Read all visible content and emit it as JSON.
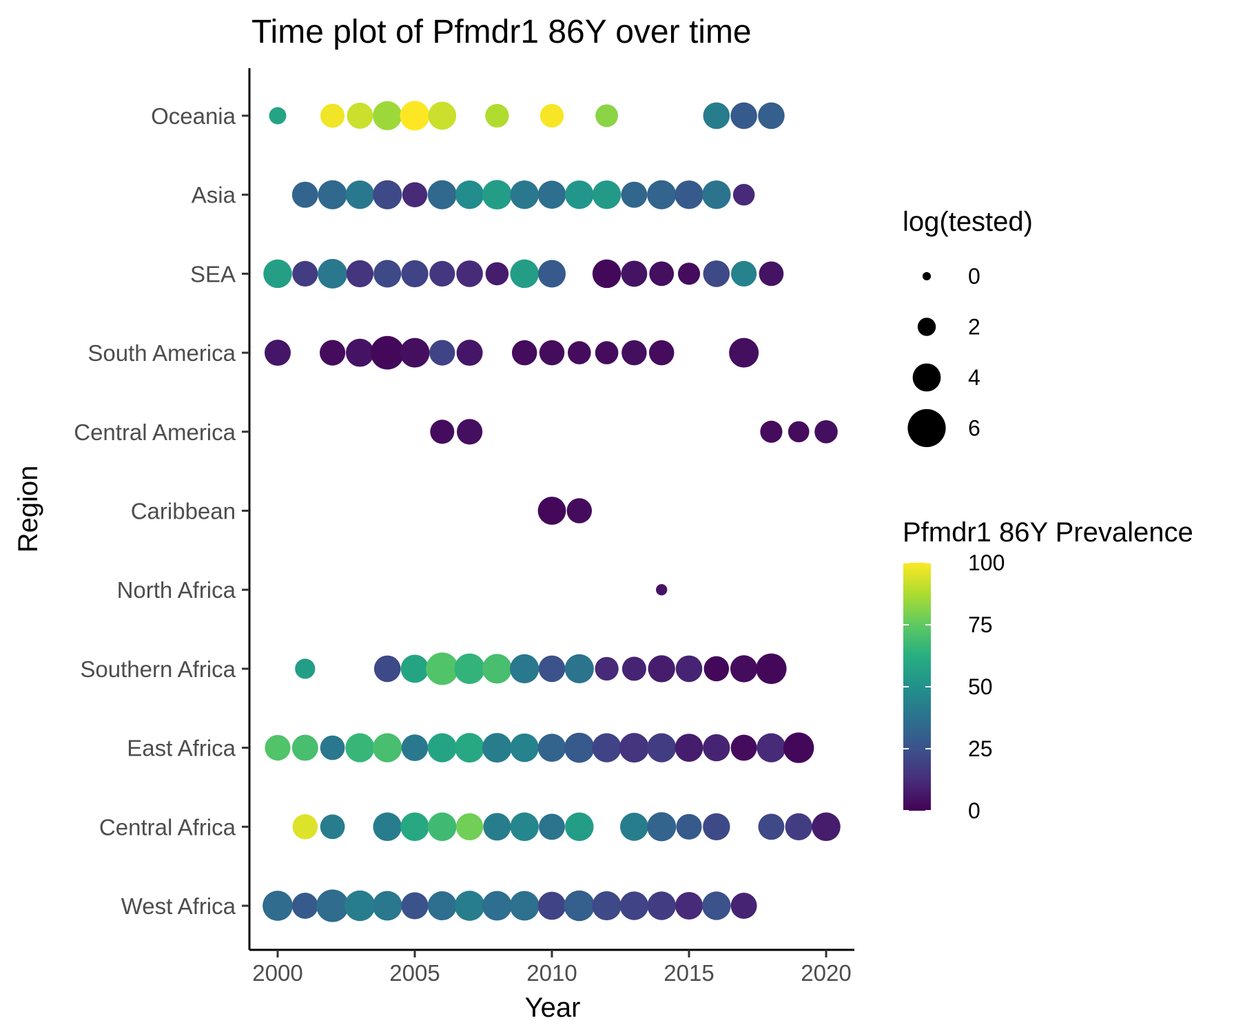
{
  "chart_data": {
    "type": "scatter",
    "title": "Time plot of Pfmdr1 86Y over time",
    "xlabel": "Year",
    "ylabel": "Region",
    "xlim": [
      1999,
      2021
    ],
    "x_ticks": [
      2000,
      2005,
      2010,
      2015,
      2020
    ],
    "categories": [
      "Oceania",
      "Asia",
      "SEA",
      "South America",
      "Central America",
      "Caribbean",
      "North Africa",
      "Southern Africa",
      "East Africa",
      "Central Africa",
      "West Africa"
    ],
    "size_legend": {
      "title": "log(tested)",
      "entries": [
        {
          "label": "0",
          "value": 0
        },
        {
          "label": "2",
          "value": 2
        },
        {
          "label": "4",
          "value": 4
        },
        {
          "label": "6",
          "value": 6
        }
      ]
    },
    "color_legend": {
      "title": "Pfmdr1 86Y Prevalence",
      "ticks": [
        {
          "label": "100",
          "value": 100
        },
        {
          "label": "75",
          "value": 75
        },
        {
          "label": "50",
          "value": 50
        },
        {
          "label": "25",
          "value": 25
        },
        {
          "label": "0",
          "value": 0
        }
      ],
      "range": [
        0,
        100
      ],
      "colormap": "viridis"
    },
    "grid": false,
    "legend_position": "right",
    "series": [
      {
        "region": "Oceania",
        "points": [
          [
            2000,
            1.8,
            58
          ],
          [
            2002,
            3.2,
            98
          ],
          [
            2003,
            3.6,
            92
          ],
          [
            2004,
            4.2,
            85
          ],
          [
            2005,
            4.3,
            100
          ],
          [
            2006,
            4.0,
            92
          ],
          [
            2008,
            3.1,
            88
          ],
          [
            2010,
            3.1,
            99
          ],
          [
            2012,
            2.9,
            82
          ],
          [
            2016,
            3.7,
            42
          ],
          [
            2017,
            3.7,
            28
          ],
          [
            2018,
            3.7,
            30
          ]
        ]
      },
      {
        "region": "Asia",
        "points": [
          [
            2001,
            3.6,
            32
          ],
          [
            2002,
            4.2,
            34
          ],
          [
            2003,
            4.1,
            40
          ],
          [
            2004,
            4.2,
            22
          ],
          [
            2005,
            3.4,
            12
          ],
          [
            2006,
            4.2,
            34
          ],
          [
            2007,
            4.1,
            48
          ],
          [
            2008,
            4.3,
            55
          ],
          [
            2009,
            4.1,
            40
          ],
          [
            2010,
            4.0,
            36
          ],
          [
            2011,
            4.1,
            52
          ],
          [
            2012,
            4.1,
            54
          ],
          [
            2013,
            3.6,
            33
          ],
          [
            2014,
            4.2,
            32
          ],
          [
            2015,
            4.1,
            28
          ],
          [
            2016,
            4.1,
            38
          ],
          [
            2017,
            2.7,
            12
          ]
        ]
      },
      {
        "region": "SEA",
        "points": [
          [
            2000,
            4.1,
            56
          ],
          [
            2001,
            3.5,
            18
          ],
          [
            2002,
            4.3,
            40
          ],
          [
            2003,
            3.8,
            15
          ],
          [
            2004,
            3.9,
            22
          ],
          [
            2005,
            3.8,
            20
          ],
          [
            2006,
            3.5,
            16
          ],
          [
            2007,
            3.7,
            12
          ],
          [
            2008,
            3.0,
            8
          ],
          [
            2009,
            4.1,
            55
          ],
          [
            2010,
            3.9,
            28
          ],
          [
            2012,
            4.1,
            2
          ],
          [
            2013,
            3.6,
            5
          ],
          [
            2014,
            3.3,
            4
          ],
          [
            2015,
            2.8,
            3
          ],
          [
            2016,
            3.7,
            22
          ],
          [
            2017,
            3.5,
            44
          ],
          [
            2018,
            3.3,
            5
          ]
        ]
      },
      {
        "region": "South America",
        "points": [
          [
            2000,
            3.6,
            6
          ],
          [
            2002,
            3.5,
            3
          ],
          [
            2003,
            4.0,
            5
          ],
          [
            2004,
            5.1,
            2
          ],
          [
            2005,
            4.3,
            4
          ],
          [
            2006,
            3.5,
            20
          ],
          [
            2007,
            3.6,
            6
          ],
          [
            2009,
            3.4,
            3
          ],
          [
            2010,
            3.4,
            3
          ],
          [
            2011,
            3.0,
            3
          ],
          [
            2012,
            3.0,
            3
          ],
          [
            2013,
            3.4,
            4
          ],
          [
            2014,
            3.4,
            3
          ],
          [
            2017,
            4.3,
            4
          ]
        ]
      },
      {
        "region": "Central America",
        "points": [
          [
            2006,
            3.2,
            3
          ],
          [
            2007,
            3.5,
            4
          ],
          [
            2018,
            2.8,
            3
          ],
          [
            2019,
            2.6,
            3
          ],
          [
            2020,
            3.0,
            4
          ]
        ]
      },
      {
        "region": "Caribbean",
        "points": [
          [
            2010,
            4.0,
            2
          ],
          [
            2011,
            3.4,
            3
          ]
        ]
      },
      {
        "region": "North Africa",
        "points": [
          [
            2014,
            0.6,
            5
          ]
        ]
      },
      {
        "region": "Southern Africa",
        "points": [
          [
            2001,
            2.4,
            55
          ],
          [
            2004,
            3.7,
            22
          ],
          [
            2005,
            4.0,
            58
          ],
          [
            2006,
            4.9,
            72
          ],
          [
            2007,
            4.5,
            65
          ],
          [
            2008,
            4.3,
            70
          ],
          [
            2009,
            4.2,
            40
          ],
          [
            2010,
            3.7,
            25
          ],
          [
            2011,
            4.2,
            38
          ],
          [
            2012,
            3.1,
            12
          ],
          [
            2013,
            3.2,
            10
          ],
          [
            2014,
            3.8,
            8
          ],
          [
            2015,
            3.7,
            10
          ],
          [
            2016,
            3.4,
            2
          ],
          [
            2017,
            3.8,
            3
          ],
          [
            2018,
            4.5,
            2
          ]
        ]
      },
      {
        "region": "East Africa",
        "points": [
          [
            2000,
            3.5,
            72
          ],
          [
            2001,
            3.6,
            70
          ],
          [
            2002,
            3.3,
            40
          ],
          [
            2003,
            4.2,
            66
          ],
          [
            2004,
            4.2,
            70
          ],
          [
            2005,
            3.7,
            40
          ],
          [
            2006,
            4.2,
            58
          ],
          [
            2007,
            4.3,
            60
          ],
          [
            2008,
            4.3,
            42
          ],
          [
            2009,
            4.1,
            44
          ],
          [
            2010,
            4.0,
            32
          ],
          [
            2011,
            4.4,
            28
          ],
          [
            2012,
            4.2,
            20
          ],
          [
            2013,
            4.3,
            15
          ],
          [
            2014,
            4.2,
            18
          ],
          [
            2015,
            4.0,
            8
          ],
          [
            2016,
            3.8,
            10
          ],
          [
            2017,
            3.6,
            3
          ],
          [
            2018,
            4.2,
            12
          ],
          [
            2019,
            4.5,
            2
          ]
        ]
      },
      {
        "region": "Central Africa",
        "points": [
          [
            2001,
            3.4,
            95
          ],
          [
            2002,
            3.3,
            42
          ],
          [
            2004,
            4.1,
            42
          ],
          [
            2005,
            4.1,
            60
          ],
          [
            2006,
            4.1,
            68
          ],
          [
            2007,
            3.8,
            78
          ],
          [
            2008,
            3.9,
            42
          ],
          [
            2009,
            4.1,
            46
          ],
          [
            2010,
            3.6,
            38
          ],
          [
            2011,
            4.1,
            55
          ],
          [
            2013,
            4.0,
            42
          ],
          [
            2014,
            4.2,
            32
          ],
          [
            2015,
            3.5,
            28
          ],
          [
            2016,
            3.8,
            22
          ],
          [
            2018,
            3.6,
            22
          ],
          [
            2019,
            3.8,
            18
          ],
          [
            2020,
            4.1,
            8
          ]
        ]
      },
      {
        "region": "West Africa",
        "points": [
          [
            2000,
            4.4,
            35
          ],
          [
            2001,
            3.6,
            28
          ],
          [
            2002,
            4.9,
            35
          ],
          [
            2003,
            4.5,
            42
          ],
          [
            2004,
            4.3,
            40
          ],
          [
            2005,
            3.8,
            25
          ],
          [
            2006,
            4.2,
            36
          ],
          [
            2007,
            4.4,
            42
          ],
          [
            2008,
            4.3,
            36
          ],
          [
            2009,
            4.3,
            37
          ],
          [
            2010,
            4.0,
            20
          ],
          [
            2011,
            4.5,
            30
          ],
          [
            2012,
            4.2,
            22
          ],
          [
            2013,
            4.1,
            20
          ],
          [
            2014,
            4.1,
            18
          ],
          [
            2015,
            3.9,
            12
          ],
          [
            2016,
            4.1,
            25
          ],
          [
            2017,
            3.6,
            10
          ]
        ]
      }
    ]
  }
}
